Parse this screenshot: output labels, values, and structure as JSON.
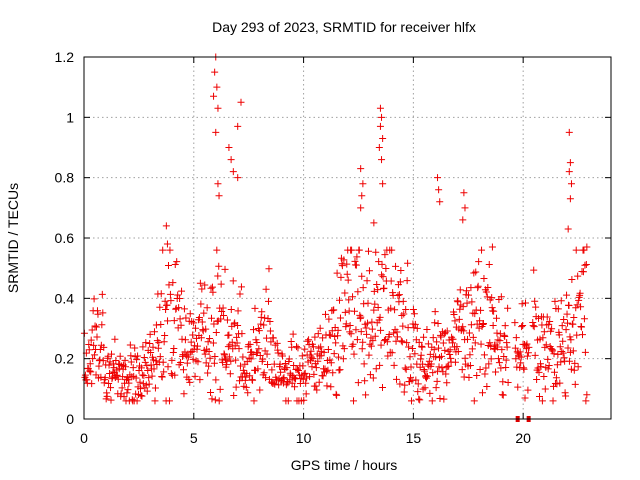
{
  "chart_data": {
    "type": "scatter",
    "title": "Day 293 of 2023, SRMTID for receiver hlfx",
    "xlabel": "GPS time / hours",
    "ylabel": "SRMTID / TECUs",
    "xlim": [
      0,
      24
    ],
    "ylim": [
      0,
      1.2
    ],
    "xticks": [
      "0",
      "5",
      "10",
      "15",
      "20"
    ],
    "yticks": [
      "0",
      "0.2",
      "0.4",
      "0.6",
      "0.8",
      "1",
      "1.2"
    ],
    "grid": true,
    "series": [
      {
        "name": "SRMTID",
        "marker": "plus",
        "color": "#ee0000",
        "trend": [
          {
            "x": 0.0,
            "y": 0.17
          },
          {
            "x": 0.5,
            "y": 0.25
          },
          {
            "x": 1.0,
            "y": 0.18
          },
          {
            "x": 1.5,
            "y": 0.15
          },
          {
            "x": 2.0,
            "y": 0.14
          },
          {
            "x": 2.5,
            "y": 0.12
          },
          {
            "x": 3.0,
            "y": 0.2
          },
          {
            "x": 3.5,
            "y": 0.27
          },
          {
            "x": 4.0,
            "y": 0.32
          },
          {
            "x": 4.5,
            "y": 0.28
          },
          {
            "x": 5.0,
            "y": 0.25
          },
          {
            "x": 5.5,
            "y": 0.27
          },
          {
            "x": 6.0,
            "y": 0.3
          },
          {
            "x": 6.5,
            "y": 0.28
          },
          {
            "x": 7.0,
            "y": 0.25
          },
          {
            "x": 7.5,
            "y": 0.2
          },
          {
            "x": 8.0,
            "y": 0.22
          },
          {
            "x": 8.5,
            "y": 0.25
          },
          {
            "x": 9.0,
            "y": 0.18
          },
          {
            "x": 9.5,
            "y": 0.16
          },
          {
            "x": 10.0,
            "y": 0.15
          },
          {
            "x": 10.5,
            "y": 0.18
          },
          {
            "x": 11.0,
            "y": 0.22
          },
          {
            "x": 11.5,
            "y": 0.28
          },
          {
            "x": 12.0,
            "y": 0.4
          },
          {
            "x": 12.5,
            "y": 0.38
          },
          {
            "x": 13.0,
            "y": 0.33
          },
          {
            "x": 13.5,
            "y": 0.32
          },
          {
            "x": 14.0,
            "y": 0.34
          },
          {
            "x": 14.5,
            "y": 0.3
          },
          {
            "x": 15.0,
            "y": 0.22
          },
          {
            "x": 15.5,
            "y": 0.2
          },
          {
            "x": 16.0,
            "y": 0.2
          },
          {
            "x": 16.5,
            "y": 0.22
          },
          {
            "x": 17.0,
            "y": 0.26
          },
          {
            "x": 17.5,
            "y": 0.28
          },
          {
            "x": 18.0,
            "y": 0.3
          },
          {
            "x": 18.5,
            "y": 0.27
          },
          {
            "x": 19.0,
            "y": 0.22
          },
          {
            "x": 19.3,
            "y": 0.2
          },
          {
            "x": 19.7,
            "y": 0.19
          },
          {
            "x": 20.0,
            "y": 0.25
          },
          {
            "x": 20.5,
            "y": 0.3
          },
          {
            "x": 21.0,
            "y": 0.25
          },
          {
            "x": 21.5,
            "y": 0.22
          },
          {
            "x": 22.0,
            "y": 0.28
          },
          {
            "x": 22.5,
            "y": 0.36
          },
          {
            "x": 22.8,
            "y": 0.4
          }
        ],
        "peaks": [
          {
            "x": 6.0,
            "y": 1.2
          },
          {
            "x": 5.95,
            "y": 1.15
          },
          {
            "x": 6.05,
            "y": 1.1
          },
          {
            "x": 5.9,
            "y": 1.07
          },
          {
            "x": 6.1,
            "y": 1.03
          },
          {
            "x": 6.0,
            "y": 0.95
          },
          {
            "x": 7.15,
            "y": 1.05
          },
          {
            "x": 7.0,
            "y": 0.97
          },
          {
            "x": 6.6,
            "y": 0.9
          },
          {
            "x": 6.7,
            "y": 0.86
          },
          {
            "x": 6.8,
            "y": 0.82
          },
          {
            "x": 7.0,
            "y": 0.8
          },
          {
            "x": 6.1,
            "y": 0.78
          },
          {
            "x": 6.15,
            "y": 0.74
          },
          {
            "x": 3.75,
            "y": 0.64
          },
          {
            "x": 3.8,
            "y": 0.58
          },
          {
            "x": 13.5,
            "y": 1.03
          },
          {
            "x": 13.55,
            "y": 1.0
          },
          {
            "x": 13.5,
            "y": 0.97
          },
          {
            "x": 13.6,
            "y": 0.93
          },
          {
            "x": 13.45,
            "y": 0.9
          },
          {
            "x": 13.55,
            "y": 0.86
          },
          {
            "x": 13.6,
            "y": 0.78
          },
          {
            "x": 12.6,
            "y": 0.83
          },
          {
            "x": 12.7,
            "y": 0.78
          },
          {
            "x": 12.65,
            "y": 0.74
          },
          {
            "x": 12.6,
            "y": 0.7
          },
          {
            "x": 13.2,
            "y": 0.65
          },
          {
            "x": 16.1,
            "y": 0.8
          },
          {
            "x": 16.15,
            "y": 0.76
          },
          {
            "x": 16.2,
            "y": 0.72
          },
          {
            "x": 17.3,
            "y": 0.75
          },
          {
            "x": 17.35,
            "y": 0.7
          },
          {
            "x": 17.25,
            "y": 0.66
          },
          {
            "x": 22.1,
            "y": 0.95
          },
          {
            "x": 22.15,
            "y": 0.85
          },
          {
            "x": 22.1,
            "y": 0.82
          },
          {
            "x": 22.2,
            "y": 0.78
          },
          {
            "x": 22.15,
            "y": 0.73
          },
          {
            "x": 22.05,
            "y": 0.63
          },
          {
            "x": 18.6,
            "y": 0.57
          },
          {
            "x": 22.9,
            "y": 0.57
          }
        ],
        "gap_marks": [
          {
            "x": 19.75,
            "y": 0.0
          },
          {
            "x": 20.25,
            "y": 0.0
          }
        ]
      }
    ]
  }
}
